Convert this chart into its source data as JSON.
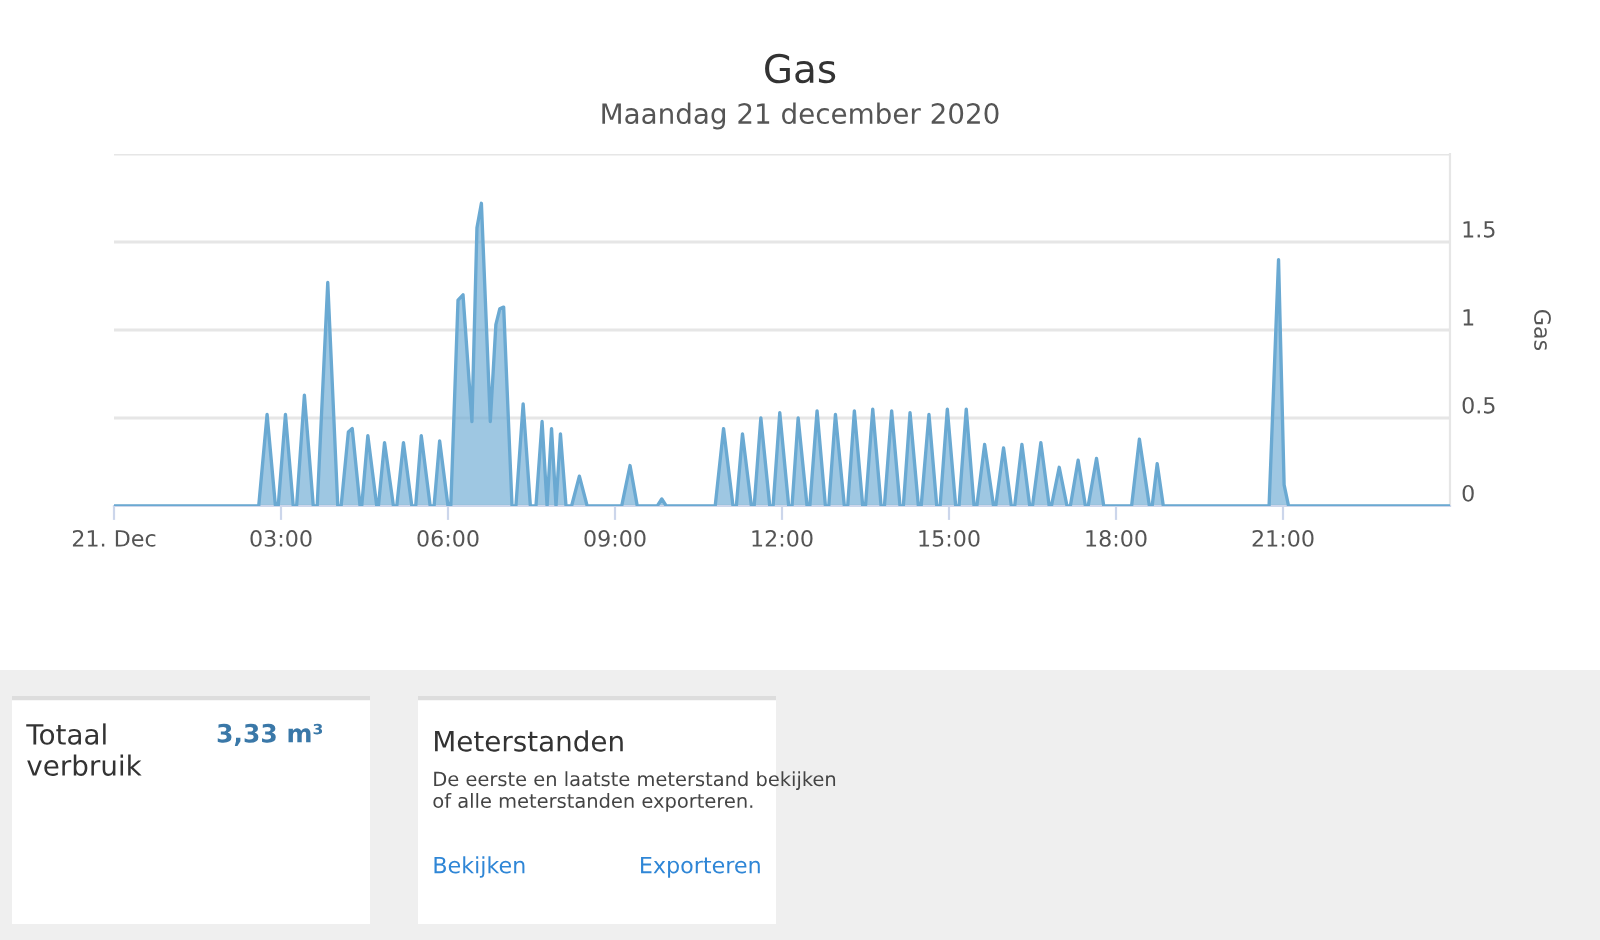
{
  "chart_data": [
    {
      "type": "area",
      "title": "Gas",
      "subtitle": "Maandag 21 december 2020",
      "ylabel": "Gas",
      "x": [
        0,
        2.6,
        2.75,
        2.9,
        2.95,
        3.08,
        3.22,
        3.28,
        3.42,
        3.58,
        3.65,
        3.84,
        4.02,
        4.08,
        4.21,
        4.28,
        4.42,
        4.45,
        4.56,
        4.72,
        4.75,
        4.86,
        5.02,
        5.08,
        5.2,
        5.35,
        5.42,
        5.52,
        5.68,
        5.75,
        5.85,
        6.0,
        6.05,
        6.18,
        6.27,
        6.43,
        6.52,
        6.6,
        6.76,
        6.86,
        6.93,
        7.0,
        7.15,
        7.22,
        7.35,
        7.48,
        7.58,
        7.69,
        7.78,
        7.86,
        7.94,
        8.02,
        8.12,
        8.22,
        8.36,
        8.5,
        9.12,
        9.27,
        9.4,
        9.76,
        9.84,
        9.92,
        10.8,
        10.95,
        11.12,
        11.18,
        11.29,
        11.45,
        11.5,
        11.62,
        11.78,
        11.84,
        11.96,
        12.12,
        12.18,
        12.29,
        12.45,
        12.5,
        12.63,
        12.78,
        12.84,
        12.96,
        13.12,
        13.18,
        13.3,
        13.45,
        13.5,
        13.63,
        13.78,
        13.84,
        13.97,
        14.12,
        14.18,
        14.3,
        14.45,
        14.5,
        14.64,
        14.78,
        14.84,
        14.97,
        15.12,
        15.18,
        15.31,
        15.45,
        15.5,
        15.64,
        15.8,
        15.84,
        15.98,
        16.12,
        16.18,
        16.31,
        16.45,
        16.5,
        16.65,
        16.8,
        16.84,
        16.98,
        17.12,
        17.18,
        17.32,
        17.45,
        17.5,
        17.65,
        17.78,
        18.28,
        18.42,
        18.6,
        18.65,
        18.74,
        18.85,
        20.75,
        20.92,
        21.02,
        21.1,
        24
      ],
      "values": [
        0,
        0,
        0.52,
        0,
        0,
        0.52,
        0,
        0,
        0.63,
        0,
        0,
        1.27,
        0,
        0,
        0.42,
        0.44,
        0,
        0,
        0.4,
        0,
        0,
        0.36,
        0,
        0,
        0.36,
        0,
        0,
        0.4,
        0,
        0,
        0.37,
        0,
        0,
        1.17,
        1.2,
        0.48,
        1.58,
        1.72,
        0.48,
        1.03,
        1.12,
        1.13,
        0,
        0,
        0.58,
        0,
        0,
        0.48,
        0,
        0.44,
        0,
        0.41,
        0,
        0,
        0.17,
        0,
        0,
        0.23,
        0,
        0,
        0.04,
        0,
        0,
        0.44,
        0,
        0,
        0.41,
        0,
        0,
        0.5,
        0,
        0,
        0.53,
        0,
        0,
        0.5,
        0,
        0,
        0.54,
        0,
        0,
        0.52,
        0,
        0,
        0.54,
        0,
        0,
        0.55,
        0,
        0,
        0.54,
        0,
        0,
        0.53,
        0,
        0,
        0.52,
        0,
        0,
        0.55,
        0,
        0,
        0.55,
        0,
        0,
        0.35,
        0,
        0,
        0.33,
        0,
        0,
        0.35,
        0,
        0,
        0.36,
        0,
        0,
        0.22,
        0,
        0,
        0.26,
        0,
        0,
        0.27,
        0,
        0,
        0.38,
        0,
        0,
        0.24,
        0,
        0,
        1.4,
        0.12,
        0,
        0
      ],
      "color": "#6aa9d2",
      "xlim": [
        0,
        24
      ],
      "xticks": [
        {
          "value": 0,
          "label": "21. Dec"
        },
        {
          "value": 3,
          "label": "03:00"
        },
        {
          "value": 6,
          "label": "06:00"
        },
        {
          "value": 9,
          "label": "09:00"
        },
        {
          "value": 12,
          "label": "12:00"
        },
        {
          "value": 15,
          "label": "15:00"
        },
        {
          "value": 18,
          "label": "18:00"
        },
        {
          "value": 21,
          "label": "21:00"
        }
      ],
      "ylim": [
        0,
        2
      ],
      "yticks": [
        0,
        0.5,
        1,
        1.5,
        {
          "value": 2,
          "label": null
        }
      ],
      "grid": "y",
      "legend": false
    },
    {
      "type": "other",
      "title": "Totaal verbruik",
      "annotations": [
        "3,33 m³"
      ]
    },
    {
      "type": "other",
      "title": "Meterstanden",
      "annotations": [
        "De eerste en laatste meterstand bekijken of alle meterstanden exporteren.",
        "Bekijken",
        "Exporteren"
      ]
    }
  ]
}
